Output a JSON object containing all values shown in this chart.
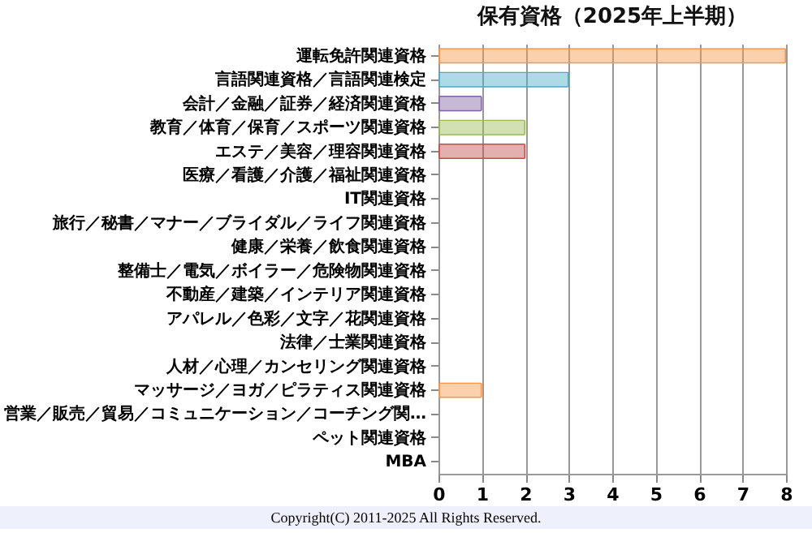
{
  "chart_data": {
    "type": "bar",
    "orientation": "horizontal",
    "title": "保有資格（2025年上半期）",
    "categories": [
      "運転免許関連資格",
      "言語関連資格／言語関連検定",
      "会計／金融／証券／経済関連資格",
      "教育／体育／保育／スポーツ関連資格",
      "エステ／美容／理容関連資格",
      "医療／看護／介護／福祉関連資格",
      "IT関連資格",
      "旅行／秘書／マナー／ブライダル／ライフ関連資格",
      "健康／栄養／飲食関連資格",
      "整備士／電気／ボイラー／危険物関連資格",
      "不動産／建築／インテリア関連資格",
      "アパレル／色彩／文字／花関連資格",
      "法律／士業関連資格",
      "人材／心理／カンセリング関連資格",
      "マッサージ／ヨガ／ピラティス関連資格",
      "営業／販売／貿易／コミュニケーション／コーチング関…",
      "ペット関連資格",
      "MBA"
    ],
    "values": [
      8,
      3,
      1,
      2,
      2,
      0,
      0,
      0,
      0,
      0,
      0,
      0,
      0,
      0,
      1,
      0,
      0,
      0
    ],
    "colors": [
      "#f79646",
      "#4bacc6",
      "#8064a2",
      "#9bbb59",
      "#c0504d",
      "#4f81bd",
      "#404040",
      "#974806",
      "#215968",
      "#403151",
      "#4f6228",
      "#632523",
      "#17375e",
      "#0d0d0d",
      "#f79646",
      "#4bacc6",
      "#8064a2",
      "#9bbb59"
    ],
    "xlim": [
      0,
      8
    ],
    "xticks": [
      0,
      1,
      2,
      3,
      4,
      5,
      6,
      7,
      8
    ],
    "grid": "x",
    "annotations": [
      "Copyright(C) 2011-2025 All Rights Reserved."
    ]
  }
}
